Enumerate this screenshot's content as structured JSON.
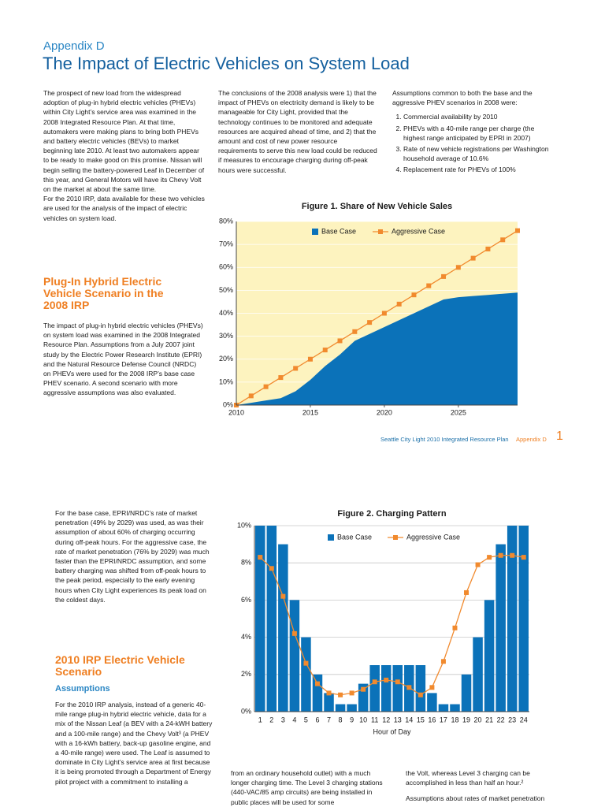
{
  "header": {
    "appendix": "Appendix D",
    "title": "The Impact of Electric Vehicles on System Load"
  },
  "page1": {
    "col1": [
      "The prospect of new load from the widespread adoption of plug-in hybrid electric vehicles (PHEVs) within City Light’s service area was examined in the 2008 Integrated Resource Plan. At that time, automakers were making plans to bring both PHEVs and battery electric vehicles (BEVs) to market beginning late 2010. At least two automakers appear to be ready to make good on this promise. Nissan will begin selling the battery-powered Leaf in December of this year, and General Motors will have its Chevy Volt on the market at about the same time.",
      "For the 2010 IRP, data available for these two vehicles are used for the analysis of the impact of electric vehicles on system load."
    ],
    "heading": "Plug-In Hybrid Electric Vehicle Scenario in the 2008 IRP",
    "col1b": "The impact of plug-in hybrid electric vehicles (PHEVs) on system load was examined in the 2008 Integrated Resource Plan. Assumptions from a July 2007 joint study by the Electric Power Research Institute (EPRI) and the Natural Resource Defense Council (NRDC) on PHEVs were used for the 2008 IRP’s base case PHEV scenario. A second scenario with more aggressive assumptions was also evaluated.",
    "col2": "The conclusions of the 2008 analysis were 1) that the impact of PHEVs on electricity demand is likely to be manageable for City Light, provided that the technology continues to be monitored and adequate resources are acquired ahead of time, and 2) that the amount and cost of new power resource requirements to serve this new load could be reduced if measures to encourage charging during off-peak hours were successful.",
    "col3": {
      "intro": "Assumptions common to both the base and the aggressive PHEV scenarios in 2008 were:",
      "items": [
        "Commercial availability by 2010",
        "PHEVs with a 40-mile range per charge (the highest range anticipated by EPRI in 2007)",
        "Rate of new vehicle registrations per Washington household average of 10.6%",
        "Replacement rate for PHEVs of 100%"
      ]
    }
  },
  "footer": {
    "publication": "Seattle City Light 2010 Integrated Resource Plan",
    "section": "Appendix D",
    "page": "1"
  },
  "page2": {
    "col1": "For the base case, EPRI/NRDC’s rate of market penetration (49% by 2029) was used, as was their assumption of about 60% of charging occurring during off-peak hours. For the aggressive case, the rate of market penetration (76% by 2029) was much faster than the EPRI/NRDC assumption, and some battery charging was shifted from off-peak hours to the peak period, especially to the early evening hours when City Light experiences its peak load on the coldest days.",
    "heading": "2010 IRP Electric Vehicle Scenario",
    "subheading": "Assumptions",
    "col1b": "For the 2010 IRP analysis, instead of a generic 40-mile range plug-in hybrid electric vehicle, data for a mix of the Nissan Leaf (a BEV with a 24-kWH battery and a 100-mile range) and the Chevy Volt³ (a PHEV with a 16-kWh battery, back-up gasoline engine, and a 40-mile range) were used. The Leaf is assumed to dominate in City Light’s service area at first because it is being promoted through a Department of Energy pilot project with a commitment to installing a",
    "col2": "from an ordinary household outlet) with a much longer charging time. The Level 3 charging stations (440-VAC/85 amp circuits) are being installed in public places will be used for some",
    "col3": [
      "the Volt, whereas Level 3 charging can be accomplished in less than half an hour.²",
      "Assumptions about rates of market penetration"
    ]
  },
  "chart_data": [
    {
      "type": "area",
      "title": "Figure 1. Share of New Vehicle Sales",
      "x": [
        2010,
        2011,
        2012,
        2013,
        2014,
        2015,
        2016,
        2017,
        2018,
        2019,
        2020,
        2021,
        2022,
        2023,
        2024,
        2025,
        2026,
        2027,
        2028,
        2029
      ],
      "xlim": [
        2010,
        2029
      ],
      "xticks": [
        2010,
        2015,
        2020,
        2025
      ],
      "ylim": [
        0,
        80
      ],
      "yticks": [
        {
          "value": 0,
          "label": "0%"
        },
        {
          "value": 10,
          "label": "10%"
        },
        {
          "value": 20,
          "label": "20%"
        },
        {
          "value": 30,
          "label": "30%"
        },
        {
          "value": 40,
          "label": "40%"
        },
        {
          "value": 50,
          "label": "50%"
        },
        {
          "value": 60,
          "label": "60%"
        },
        {
          "value": 70,
          "label": "70%"
        },
        {
          "value": 80,
          "label": "80%"
        }
      ],
      "grid": true,
      "background": "#fdf3bf",
      "legend": "top",
      "series": [
        {
          "name": "Base Case",
          "type": "area",
          "color": "#0b72b9",
          "values": [
            0,
            1,
            2,
            3,
            6,
            11,
            17,
            22,
            28,
            31,
            34,
            37,
            40,
            43,
            46,
            47,
            47.5,
            48,
            48.5,
            49
          ]
        },
        {
          "name": "Aggressive Case",
          "type": "line",
          "color": "#f18a2e",
          "values": [
            0,
            4,
            8,
            12,
            16,
            20,
            24,
            28,
            32,
            36,
            40,
            44,
            48,
            52,
            56,
            60,
            64,
            68,
            72,
            76
          ]
        }
      ]
    },
    {
      "type": "bar",
      "title": "Figure 2. Charging Pattern",
      "x_label": "Hour of Day",
      "categories": [
        "1",
        "2",
        "3",
        "4",
        "5",
        "6",
        "7",
        "8",
        "9",
        "10",
        "11",
        "12",
        "13",
        "14",
        "15",
        "16",
        "17",
        "18",
        "19",
        "20",
        "21",
        "22",
        "23",
        "24"
      ],
      "ylim": [
        0,
        10
      ],
      "yticks": [
        {
          "value": 0,
          "label": "0%"
        },
        {
          "value": 2,
          "label": "2%"
        },
        {
          "value": 4,
          "label": "4%"
        },
        {
          "value": 6,
          "label": "6%"
        },
        {
          "value": 8,
          "label": "8%"
        },
        {
          "value": 10,
          "label": "10%"
        }
      ],
      "grid": true,
      "background": "#ffffff",
      "legend": "top",
      "series": [
        {
          "name": "Base Case",
          "type": "bar",
          "color": "#0b72b9",
          "values": [
            10,
            10,
            9,
            6,
            4,
            2,
            1,
            0.4,
            0.4,
            1.5,
            2.5,
            2.5,
            2.5,
            2.5,
            2.5,
            1,
            0.4,
            0.4,
            2,
            4,
            6,
            9,
            10,
            10
          ]
        },
        {
          "name": "Aggressive Case",
          "type": "line",
          "color": "#f18a2e",
          "values": [
            8.3,
            7.7,
            6.2,
            4.2,
            2.6,
            1.5,
            1.0,
            0.9,
            1.0,
            1.2,
            1.6,
            1.7,
            1.6,
            1.3,
            0.9,
            1.3,
            2.7,
            4.5,
            6.4,
            7.9,
            8.3,
            8.4,
            8.4,
            8.3
          ]
        }
      ]
    }
  ]
}
